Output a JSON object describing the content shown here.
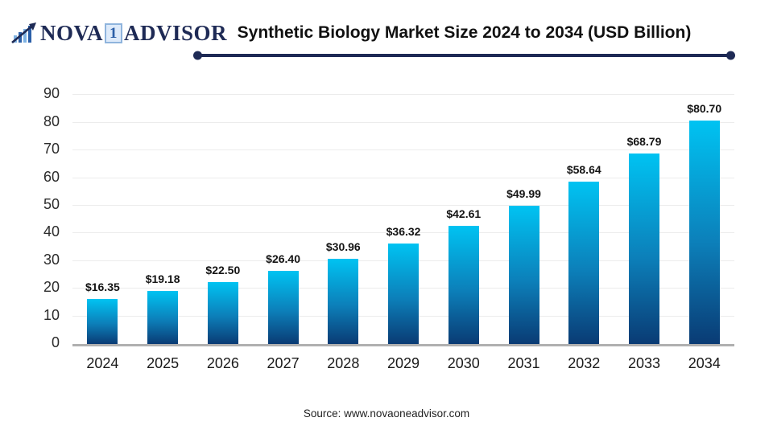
{
  "header": {
    "logo": {
      "nova": "NOVA",
      "one": "1",
      "advisor": "ADVISOR"
    },
    "title": "Synthetic Biology Market Size 2024 to 2034 (USD Billion)"
  },
  "chart_data": {
    "type": "bar",
    "title": "Synthetic Biology Market Size 2024 to 2034 (USD Billion)",
    "categories": [
      "2024",
      "2025",
      "2026",
      "2027",
      "2028",
      "2029",
      "2030",
      "2031",
      "2032",
      "2033",
      "2034"
    ],
    "values": [
      16.35,
      19.18,
      22.5,
      26.4,
      30.96,
      36.32,
      42.61,
      49.99,
      58.64,
      68.79,
      80.7
    ],
    "value_labels": [
      "$16.35",
      "$19.18",
      "$22.50",
      "$26.40",
      "$30.96",
      "$36.32",
      "$42.61",
      "$49.99",
      "$58.64",
      "$68.79",
      "$80.70"
    ],
    "unit": "USD Billion",
    "xlabel": "",
    "ylabel": "",
    "ylim": [
      0,
      90
    ],
    "yticks": [
      0,
      10,
      20,
      30,
      40,
      50,
      60,
      70,
      80,
      90
    ],
    "grid": true,
    "legend": "none"
  },
  "footer": {
    "source": "Source: www.novaoneadvisor.com"
  },
  "colors": {
    "bar_gradient_top": "#00c3f2",
    "bar_gradient_bottom": "#0a3b74",
    "brand_navy": "#1e2a55",
    "gridline": "#ececec",
    "axis_line": "#b0b0b0",
    "one_box_bg": "#ddeafa",
    "one_box_border": "#8fb4dd",
    "one_box_text": "#2b5fa8"
  }
}
